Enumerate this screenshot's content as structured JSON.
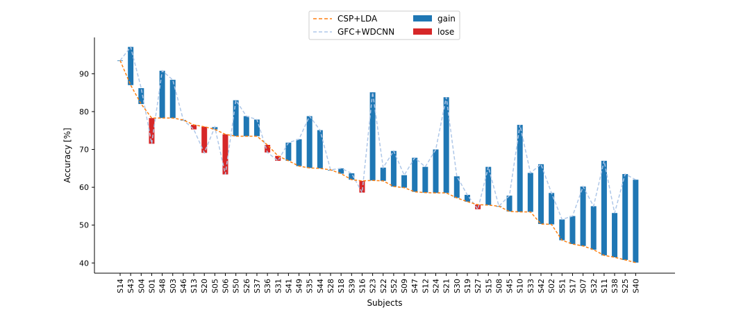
{
  "chart_data": {
    "type": "bar",
    "title": "",
    "xlabel": "Subjects",
    "ylabel": "Accuracy [%]",
    "ylim": [
      37.3,
      99.6
    ],
    "yticks": [
      40,
      50,
      60,
      70,
      80,
      90
    ],
    "grid": false,
    "legend_position": "top-center",
    "colors": {
      "baseline": "#ff7f0e",
      "model": "#aec7e8",
      "gain": "#1f77b4",
      "lose": "#d62728",
      "axis": "#000000"
    },
    "legend": {
      "baseline": "CSP+LDA",
      "model": "GFC+WDCNN",
      "gain": "gain",
      "lose": "lose"
    },
    "categories": [
      "S14",
      "S43",
      "S04",
      "S01",
      "S48",
      "S03",
      "S46",
      "S13",
      "S20",
      "S05",
      "S06",
      "S50",
      "S26",
      "S37",
      "S36",
      "S31",
      "S41",
      "S49",
      "S35",
      "S44",
      "S28",
      "S18",
      "S39",
      "S16",
      "S23",
      "S22",
      "S52",
      "S09",
      "S47",
      "S12",
      "S24",
      "S21",
      "S30",
      "S19",
      "S27",
      "S15",
      "S08",
      "S45",
      "S10",
      "S33",
      "S42",
      "S02",
      "S51",
      "S17",
      "S07",
      "S32",
      "S11",
      "S38",
      "S25",
      "S40"
    ],
    "series": [
      {
        "name": "CSP+LDA",
        "values": [
          93.5,
          87.0,
          82.0,
          78.3,
          78.3,
          78.3,
          77.8,
          76.5,
          76.0,
          75.3,
          74.0,
          73.5,
          73.5,
          73.5,
          71.2,
          68.3,
          67.0,
          65.6,
          65.1,
          65.0,
          64.6,
          63.6,
          62.0,
          61.7,
          61.8,
          61.7,
          60.2,
          59.9,
          58.8,
          58.6,
          58.5,
          58.5,
          57.2,
          56.2,
          55.4,
          55.3,
          55.0,
          53.6,
          53.5,
          53.5,
          50.3,
          50.2,
          46.0,
          45.0,
          44.5,
          43.5,
          42.0,
          41.5,
          40.8,
          40.1
        ]
      },
      {
        "name": "GFC+WDCNN",
        "values": [
          93.5,
          97.1,
          86.2,
          71.5,
          90.8,
          88.4,
          77.8,
          75.3,
          69.1,
          75.9,
          63.4,
          83.0,
          78.8,
          77.9,
          69.2,
          67.0,
          71.8,
          72.7,
          78.8,
          75.1,
          64.6,
          65.0,
          63.7,
          58.6,
          85.1,
          65.2,
          69.6,
          63.2,
          67.8,
          65.4,
          70.0,
          83.8,
          62.9,
          58.0,
          54.2,
          65.4,
          55.0,
          57.8,
          76.5,
          63.8,
          66.1,
          58.5,
          51.5,
          52.4,
          60.2,
          55.0,
          67.0,
          53.2,
          63.5,
          62.0
        ]
      }
    ]
  }
}
